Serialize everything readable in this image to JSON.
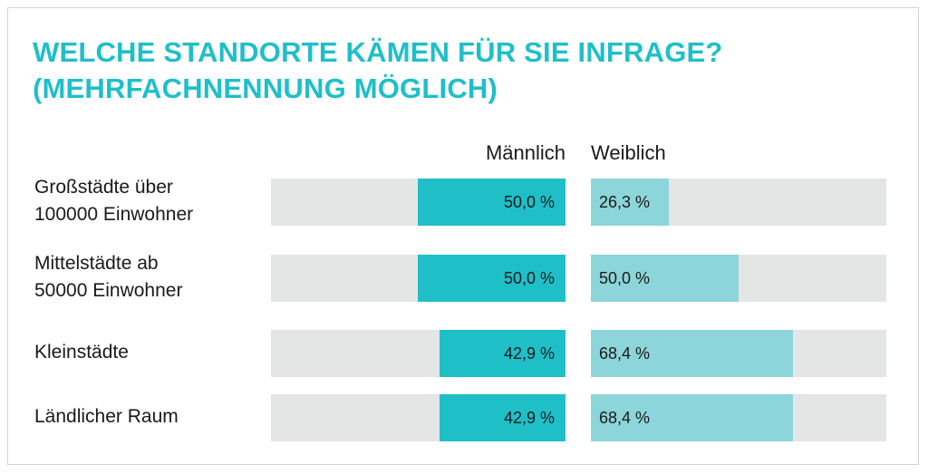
{
  "title": {
    "line1": "WELCHE STANDORTE KÄMEN FÜR SIE INFRAGE?",
    "line2": "(MEHRFACHNENNUNG MÖGLICH)"
  },
  "colors": {
    "title": "#1fbfc8",
    "male_bar": "#1fbfc8",
    "female_bar": "#8cd5da",
    "track": "#e4e6e6"
  },
  "chart_data": {
    "type": "bar",
    "orientation": "horizontal",
    "title": "WELCHE STANDORTE KÄMEN FÜR SIE INFRAGE? (MEHRFACHNENNUNG MÖGLICH)",
    "unit": "%",
    "categories": [
      [
        "Großstädte über",
        "100000 Einwohner"
      ],
      [
        "Mittelstädte ab",
        "50000 Einwohner"
      ],
      [
        "Kleinstädte"
      ],
      [
        "Ländlicher Raum"
      ]
    ],
    "series": [
      {
        "name": "Männlich",
        "values": [
          50.0,
          50.0,
          42.9,
          42.9
        ],
        "labels": [
          "50,0 %",
          "50,0 %",
          "42,9 %",
          "42,9 %"
        ],
        "direction": "right-to-left"
      },
      {
        "name": "Weiblich",
        "values": [
          26.3,
          50.0,
          68.4,
          68.4
        ],
        "labels": [
          "26,3 %",
          "50,0 %",
          "68,4 %",
          "68,4 %"
        ],
        "direction": "left-to-right"
      }
    ],
    "xlim": [
      0,
      100
    ],
    "grid": false
  }
}
